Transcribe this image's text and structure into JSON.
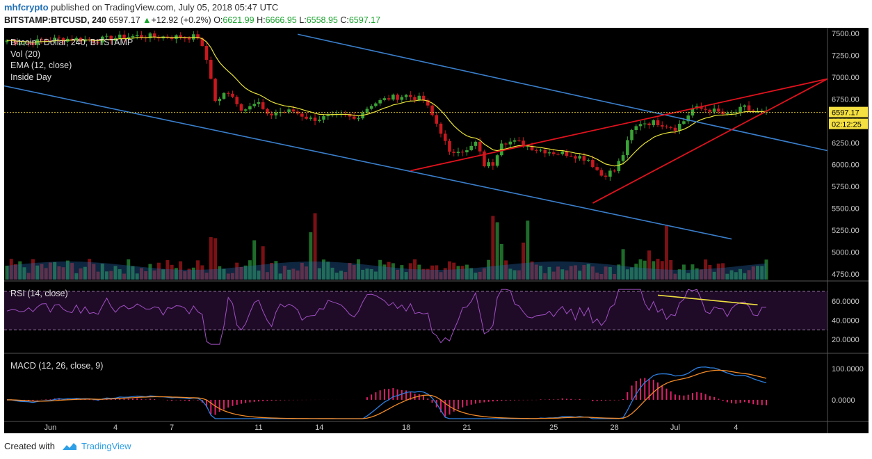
{
  "header": {
    "user": "mhfcrypto",
    "published": " published on TradingView.com, July 05, 2018 05:47 UTC",
    "symbol": "BITSTAMP:BTCUSD, 240",
    "last": "6597.17",
    "change": "+12.92 (+0.2%)",
    "o_label": "O:",
    "o_val": "6621.99",
    "h_label": "H:",
    "h_val": "6666.95",
    "l_label": "L:",
    "l_val": "6558.95",
    "c_label": "C:",
    "c_val": "6597.17"
  },
  "legend": {
    "line1": "Bitcoin / Dollar, 240, BITSTAMP",
    "line2": "Vol (20)",
    "line3": "EMA (12, close)",
    "line4": "Inside Day"
  },
  "rsi_label": "RSI (14, close)",
  "macd_label": "MACD (12, 26, close, 9)",
  "footer": {
    "created": "Created with",
    "brand": "TradingView"
  },
  "colors": {
    "up": "#3aa335",
    "down": "#c8181e",
    "ema": "#e8e338",
    "trend_blue": "#3a7fcc",
    "trend_red": "#e0121d",
    "rsi": "#a14fc4",
    "macd": "#2d7fe0",
    "signal": "#f28a28",
    "hist": "#e0206a"
  },
  "chart_data": {
    "type": "candlestick",
    "ylim": [
      4650,
      7550
    ],
    "yticks": [
      "7500.00",
      "7250.00",
      "7000.00",
      "6750.00",
      "6500.00",
      "6250.00",
      "6000.00",
      "5750.00",
      "5500.00",
      "5250.00",
      "5000.00",
      "4750.00"
    ],
    "xticks": [
      "Jun",
      "4",
      "7",
      "11",
      "14",
      "18",
      "21",
      "25",
      "28",
      "Jul",
      "4"
    ],
    "price_label": "6597.17",
    "countdown_label": "02:12:25",
    "ohlc_anchors": [
      [
        0,
        7420
      ],
      [
        5,
        7390
      ],
      [
        10,
        7430
      ],
      [
        15,
        7440
      ],
      [
        20,
        7420
      ],
      [
        25,
        7450
      ],
      [
        30,
        7470
      ],
      [
        36,
        7460
      ],
      [
        44,
        7460
      ],
      [
        46,
        7200
      ],
      [
        47,
        7000
      ],
      [
        48,
        6720
      ],
      [
        50,
        6800
      ],
      [
        52,
        6800
      ],
      [
        54,
        6620
      ],
      [
        56,
        6700
      ],
      [
        58,
        6700
      ],
      [
        60,
        6550
      ],
      [
        62,
        6600
      ],
      [
        66,
        6610
      ],
      [
        70,
        6520
      ],
      [
        74,
        6540
      ],
      [
        78,
        6560
      ],
      [
        80,
        6520
      ],
      [
        84,
        6690
      ],
      [
        88,
        6760
      ],
      [
        92,
        6790
      ],
      [
        96,
        6740
      ],
      [
        100,
        6380
      ],
      [
        102,
        6120
      ],
      [
        104,
        6180
      ],
      [
        106,
        6150
      ],
      [
        108,
        6250
      ],
      [
        110,
        6000
      ],
      [
        112,
        6010
      ],
      [
        114,
        6270
      ],
      [
        118,
        6250
      ],
      [
        122,
        6180
      ],
      [
        126,
        6140
      ],
      [
        130,
        6120
      ],
      [
        134,
        6060
      ],
      [
        137,
        5880
      ],
      [
        140,
        5930
      ],
      [
        142,
        6120
      ],
      [
        144,
        6380
      ],
      [
        146,
        6480
      ],
      [
        150,
        6480
      ],
      [
        154,
        6420
      ],
      [
        156,
        6500
      ],
      [
        158,
        6640
      ],
      [
        162,
        6630
      ],
      [
        166,
        6560
      ],
      [
        170,
        6650
      ],
      [
        172,
        6600
      ]
    ],
    "rsi": {
      "ylim": [
        10,
        75
      ],
      "ticks": [
        "60.0000",
        "40.0000",
        "20.0000"
      ],
      "band": [
        30,
        70
      ]
    },
    "macd": {
      "ylim": [
        -60,
        135
      ],
      "ticks": [
        "100.0000",
        "0.0000"
      ]
    },
    "trendlines": [
      {
        "name": "",
        "points": [
          [
            "x",
            0,
            6900
          ],
          [
            "x",
            175,
            5140
          ]
        ]
      },
      {
        "name": "",
        "points": [
          [
            "x",
            55,
            7490
          ],
          [
            "x",
            175,
            6160
          ]
        ]
      }
    ]
  }
}
